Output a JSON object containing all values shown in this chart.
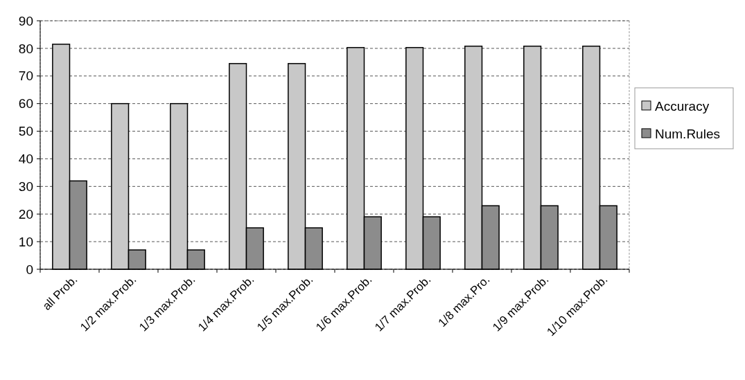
{
  "chart_data": {
    "type": "bar",
    "categories": [
      "all Prob.",
      "1/2 max.Prob.",
      "1/3 max.Prob.",
      "1/4 max.Prob.",
      "1/5 max.Prob.",
      "1/6 max.Prob.",
      "1/7 max.Prob.",
      "1/8 max.Pro.",
      "1/9 max.Prob.",
      "1/10 max.Prob."
    ],
    "series": [
      {
        "name": "Accuracy",
        "color": "#c8c8c8",
        "values": [
          81.5,
          60,
          60,
          74.5,
          74.5,
          80.3,
          80.3,
          80.8,
          80.8,
          80.8
        ]
      },
      {
        "name": "Num.Rules",
        "color": "#8c8c8c",
        "values": [
          32,
          7,
          7,
          15,
          15,
          19,
          19,
          23,
          23,
          23
        ]
      }
    ],
    "ylim": [
      0,
      90
    ],
    "yticks": [
      0,
      10,
      20,
      30,
      40,
      50,
      60,
      70,
      80,
      90
    ],
    "grid": "y",
    "legend": "right"
  }
}
